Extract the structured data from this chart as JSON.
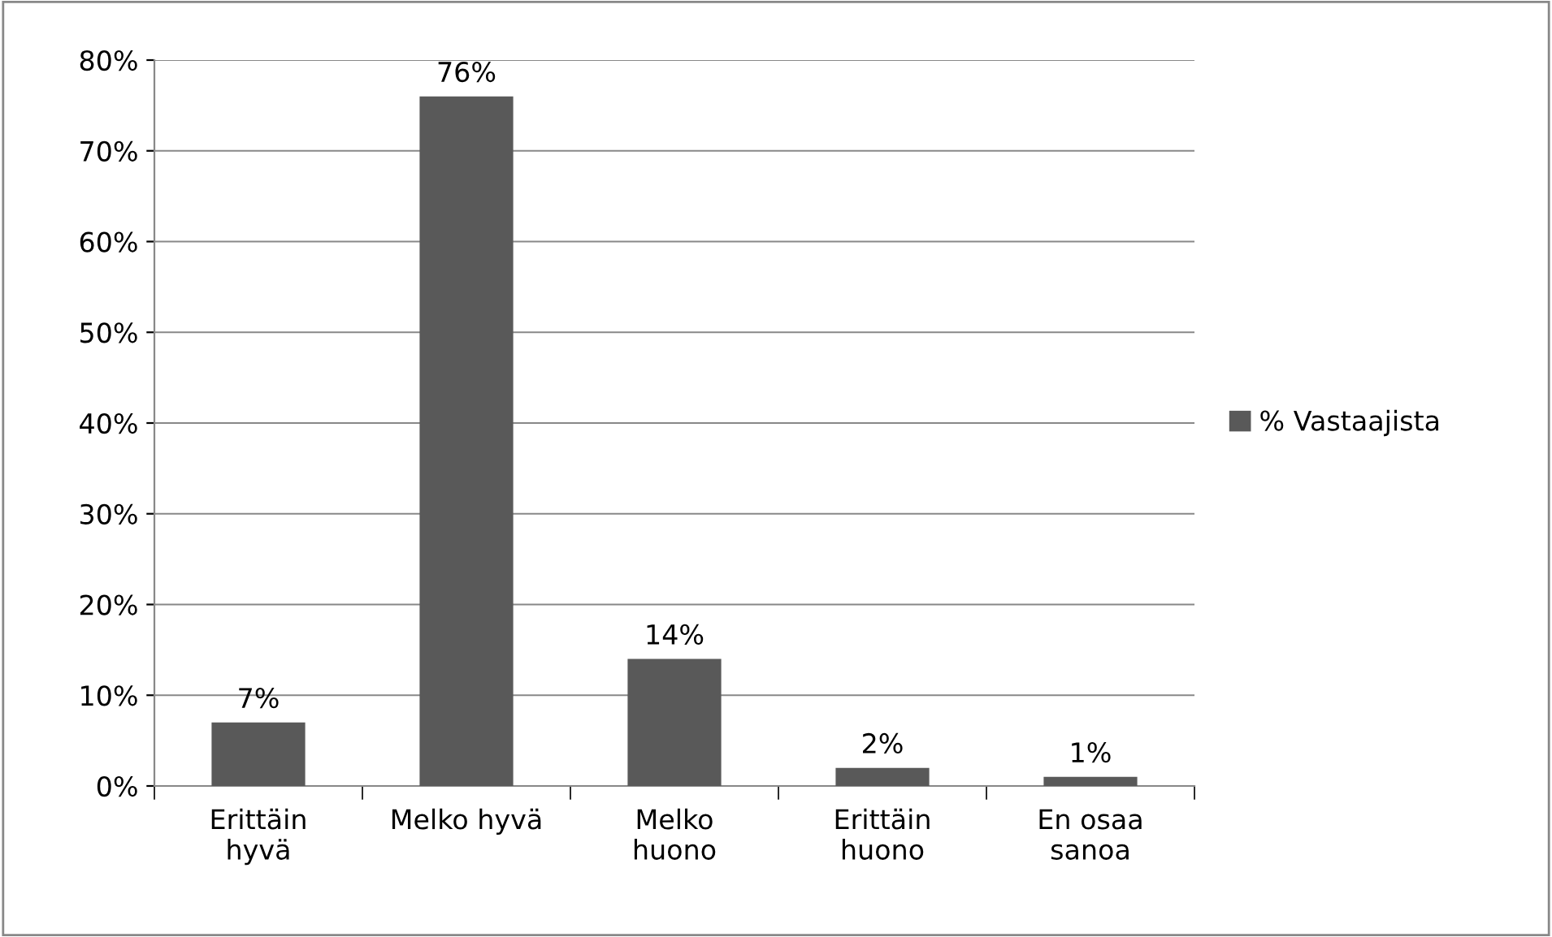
{
  "chart_data": {
    "type": "bar",
    "categories": [
      "Erittäin\nhyvä",
      "Melko hyvä",
      "Melko\nhuono",
      "Erittäin\nhuono",
      "En osaa\nsanoa"
    ],
    "series": [
      {
        "name": "% Vastaajista",
        "color": "#595959",
        "values": [
          7,
          76,
          14,
          2,
          1
        ],
        "value_labels": [
          "7%",
          "76%",
          "14%",
          "2%",
          "1%"
        ]
      }
    ],
    "ylim": [
      0,
      80
    ],
    "yticks": [
      {
        "value": 0,
        "label": "0%"
      },
      {
        "value": 10,
        "label": "10%"
      },
      {
        "value": 20,
        "label": "20%"
      },
      {
        "value": 30,
        "label": "30%"
      },
      {
        "value": 40,
        "label": "40%"
      },
      {
        "value": 50,
        "label": "50%"
      },
      {
        "value": 60,
        "label": "60%"
      },
      {
        "value": 70,
        "label": "70%"
      },
      {
        "value": 80,
        "label": "80%"
      }
    ],
    "grid": "y",
    "legend": "right"
  }
}
